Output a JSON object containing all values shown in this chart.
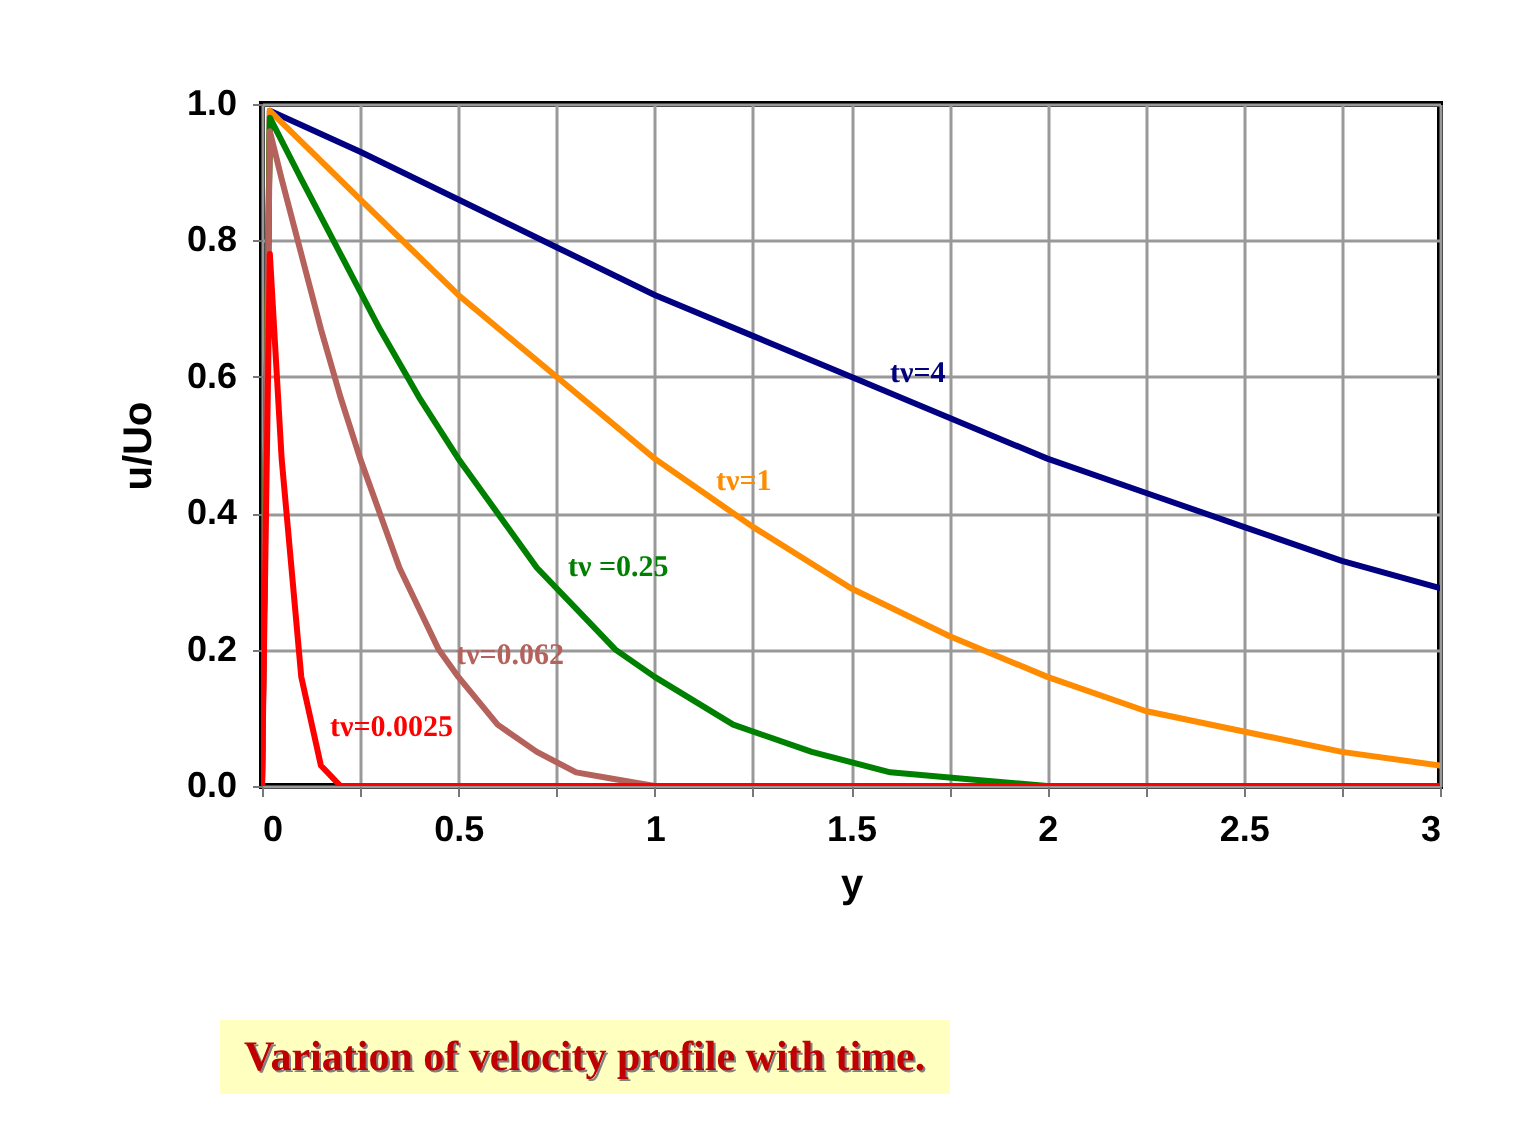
{
  "chart_data": {
    "type": "line",
    "title": "Variation of velocity profile with time.",
    "xlabel": "y",
    "ylabel": "u/Uo",
    "xlim": [
      0,
      3
    ],
    "ylim": [
      0,
      1
    ],
    "xticks": [
      0,
      {
        "value": 0.25,
        "label": null
      },
      0.5,
      {
        "value": 0.75,
        "label": null
      },
      1,
      {
        "value": 1.25,
        "label": null
      },
      1.5,
      {
        "value": 1.75,
        "label": null
      },
      2,
      {
        "value": 2.25,
        "label": null
      },
      2.5,
      {
        "value": 2.75,
        "label": null
      },
      3
    ],
    "yticks": [
      {
        "value": 0,
        "label": "0.0"
      },
      {
        "value": 0.2,
        "label": "0.2"
      },
      {
        "value": 0.4,
        "label": "0.4"
      },
      {
        "value": 0.6,
        "label": "0.6"
      },
      {
        "value": 0.8,
        "label": "0.8"
      },
      {
        "value": 1,
        "label": "1.0"
      }
    ],
    "grid": true,
    "series": [
      {
        "name": "tν=4",
        "color": "#000080",
        "x": [
          0,
          0.02,
          0.25,
          0.5,
          0.75,
          1,
          1.25,
          1.5,
          1.75,
          2,
          2.25,
          2.5,
          2.75,
          3
        ],
        "values": [
          0,
          0.99,
          0.93,
          0.86,
          0.79,
          0.72,
          0.66,
          0.6,
          0.54,
          0.48,
          0.43,
          0.38,
          0.33,
          0.29
        ]
      },
      {
        "name": "tν=1",
        "color": "#ff8c00",
        "x": [
          0,
          0.02,
          0.25,
          0.5,
          0.75,
          1,
          1.25,
          1.5,
          1.75,
          2,
          2.25,
          2.5,
          2.75,
          3
        ],
        "values": [
          0,
          0.99,
          0.86,
          0.72,
          0.6,
          0.48,
          0.38,
          0.29,
          0.22,
          0.16,
          0.11,
          0.08,
          0.05,
          0.03
        ]
      },
      {
        "name": "tν =0.25",
        "color": "#008000",
        "x": [
          0,
          0.02,
          0.1,
          0.2,
          0.3,
          0.4,
          0.5,
          0.6,
          0.7,
          0.8,
          0.9,
          1,
          1.2,
          1.4,
          1.6,
          1.8,
          2,
          2.5,
          3
        ],
        "values": [
          0,
          0.98,
          0.89,
          0.78,
          0.67,
          0.57,
          0.48,
          0.4,
          0.32,
          0.26,
          0.2,
          0.16,
          0.09,
          0.05,
          0.02,
          0.01,
          0,
          0,
          0
        ]
      },
      {
        "name": "tν=0.062",
        "color": "#b5615c",
        "x": [
          0,
          0.02,
          0.05,
          0.1,
          0.15,
          0.2,
          0.25,
          0.3,
          0.35,
          0.4,
          0.45,
          0.5,
          0.6,
          0.7,
          0.8,
          0.9,
          1,
          1.5
        ],
        "values": [
          0,
          0.96,
          0.89,
          0.78,
          0.67,
          0.57,
          0.48,
          0.4,
          0.32,
          0.26,
          0.2,
          0.16,
          0.09,
          0.05,
          0.02,
          0.01,
          0,
          0
        ]
      },
      {
        "name": "tν=0.0025",
        "color": "#ff0000",
        "x": [
          0,
          0.02,
          0.05,
          0.1,
          0.15,
          0.2,
          0.25,
          0.5,
          1,
          1.5,
          2,
          2.5,
          3
        ],
        "values": [
          0,
          0.78,
          0.48,
          0.16,
          0.03,
          0,
          0,
          0,
          0,
          0,
          0,
          0,
          0
        ]
      }
    ]
  }
}
